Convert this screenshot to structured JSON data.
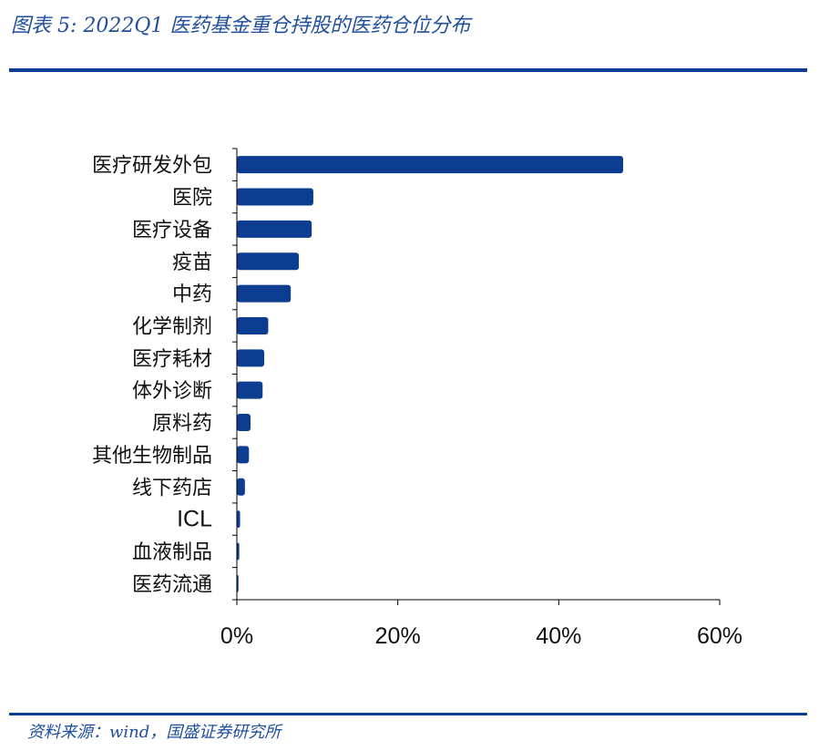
{
  "figure": {
    "title": "图表 5:  2022Q1 医药基金重仓持股的医药仓位分布",
    "source": "资料来源：wind，国盛证券研究所"
  },
  "colors": {
    "bar": "#0c3d91",
    "axis": "#000000",
    "rule": "#0c3d91"
  },
  "chart_data": {
    "type": "bar",
    "orientation": "horizontal",
    "categories": [
      "医疗研发外包",
      "医院",
      "医疗设备",
      "疫苗",
      "中药",
      "化学制剂",
      "医疗耗材",
      "体外诊断",
      "原料药",
      "其他生物制品",
      "线下药店",
      "ICL",
      "血液制品",
      "医药流通"
    ],
    "values": [
      48.0,
      9.5,
      9.3,
      7.7,
      6.7,
      3.9,
      3.4,
      3.2,
      1.7,
      1.5,
      1.0,
      0.4,
      0.3,
      0.2
    ],
    "xlim": [
      0,
      60
    ],
    "xticks": [
      0,
      20,
      40,
      60
    ],
    "xtick_labels": [
      "0%",
      "20%",
      "40%",
      "60%"
    ],
    "title": "",
    "xlabel": "",
    "ylabel": "",
    "grid": false,
    "legend": "none"
  }
}
